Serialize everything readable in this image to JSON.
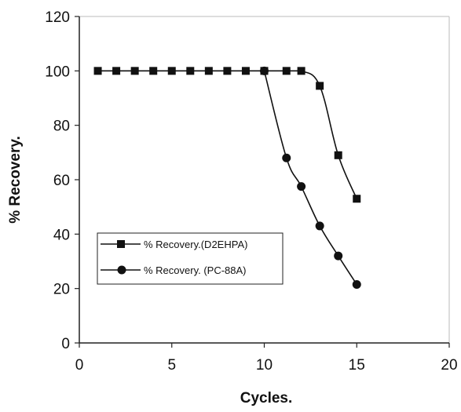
{
  "chart_data": {
    "type": "line",
    "title": "",
    "xlabel": "Cycles.",
    "ylabel": "% Recovery.",
    "xlim": [
      0,
      20
    ],
    "ylim": [
      0,
      120
    ],
    "x_ticks": [
      0,
      5,
      10,
      15,
      20
    ],
    "y_ticks": [
      0,
      20,
      40,
      60,
      80,
      100,
      120
    ],
    "grid": false,
    "legend_position": "center-left",
    "series": [
      {
        "name": "% Recovery.(D2EHPA)",
        "marker": "square",
        "color": "#111111",
        "x": [
          1,
          2,
          3,
          4,
          5,
          6,
          7,
          8,
          9,
          10,
          11.2,
          12,
          13,
          14,
          15
        ],
        "y": [
          100,
          100,
          100,
          100,
          100,
          100,
          100,
          100,
          100,
          100,
          100,
          100,
          94.5,
          69,
          53
        ]
      },
      {
        "name": "% Recovery. (PC-88A)",
        "marker": "circle",
        "color": "#111111",
        "x": [
          10,
          11.2,
          12,
          13,
          14,
          15
        ],
        "y": [
          100,
          68,
          57.5,
          43,
          32,
          21.5
        ]
      }
    ]
  }
}
